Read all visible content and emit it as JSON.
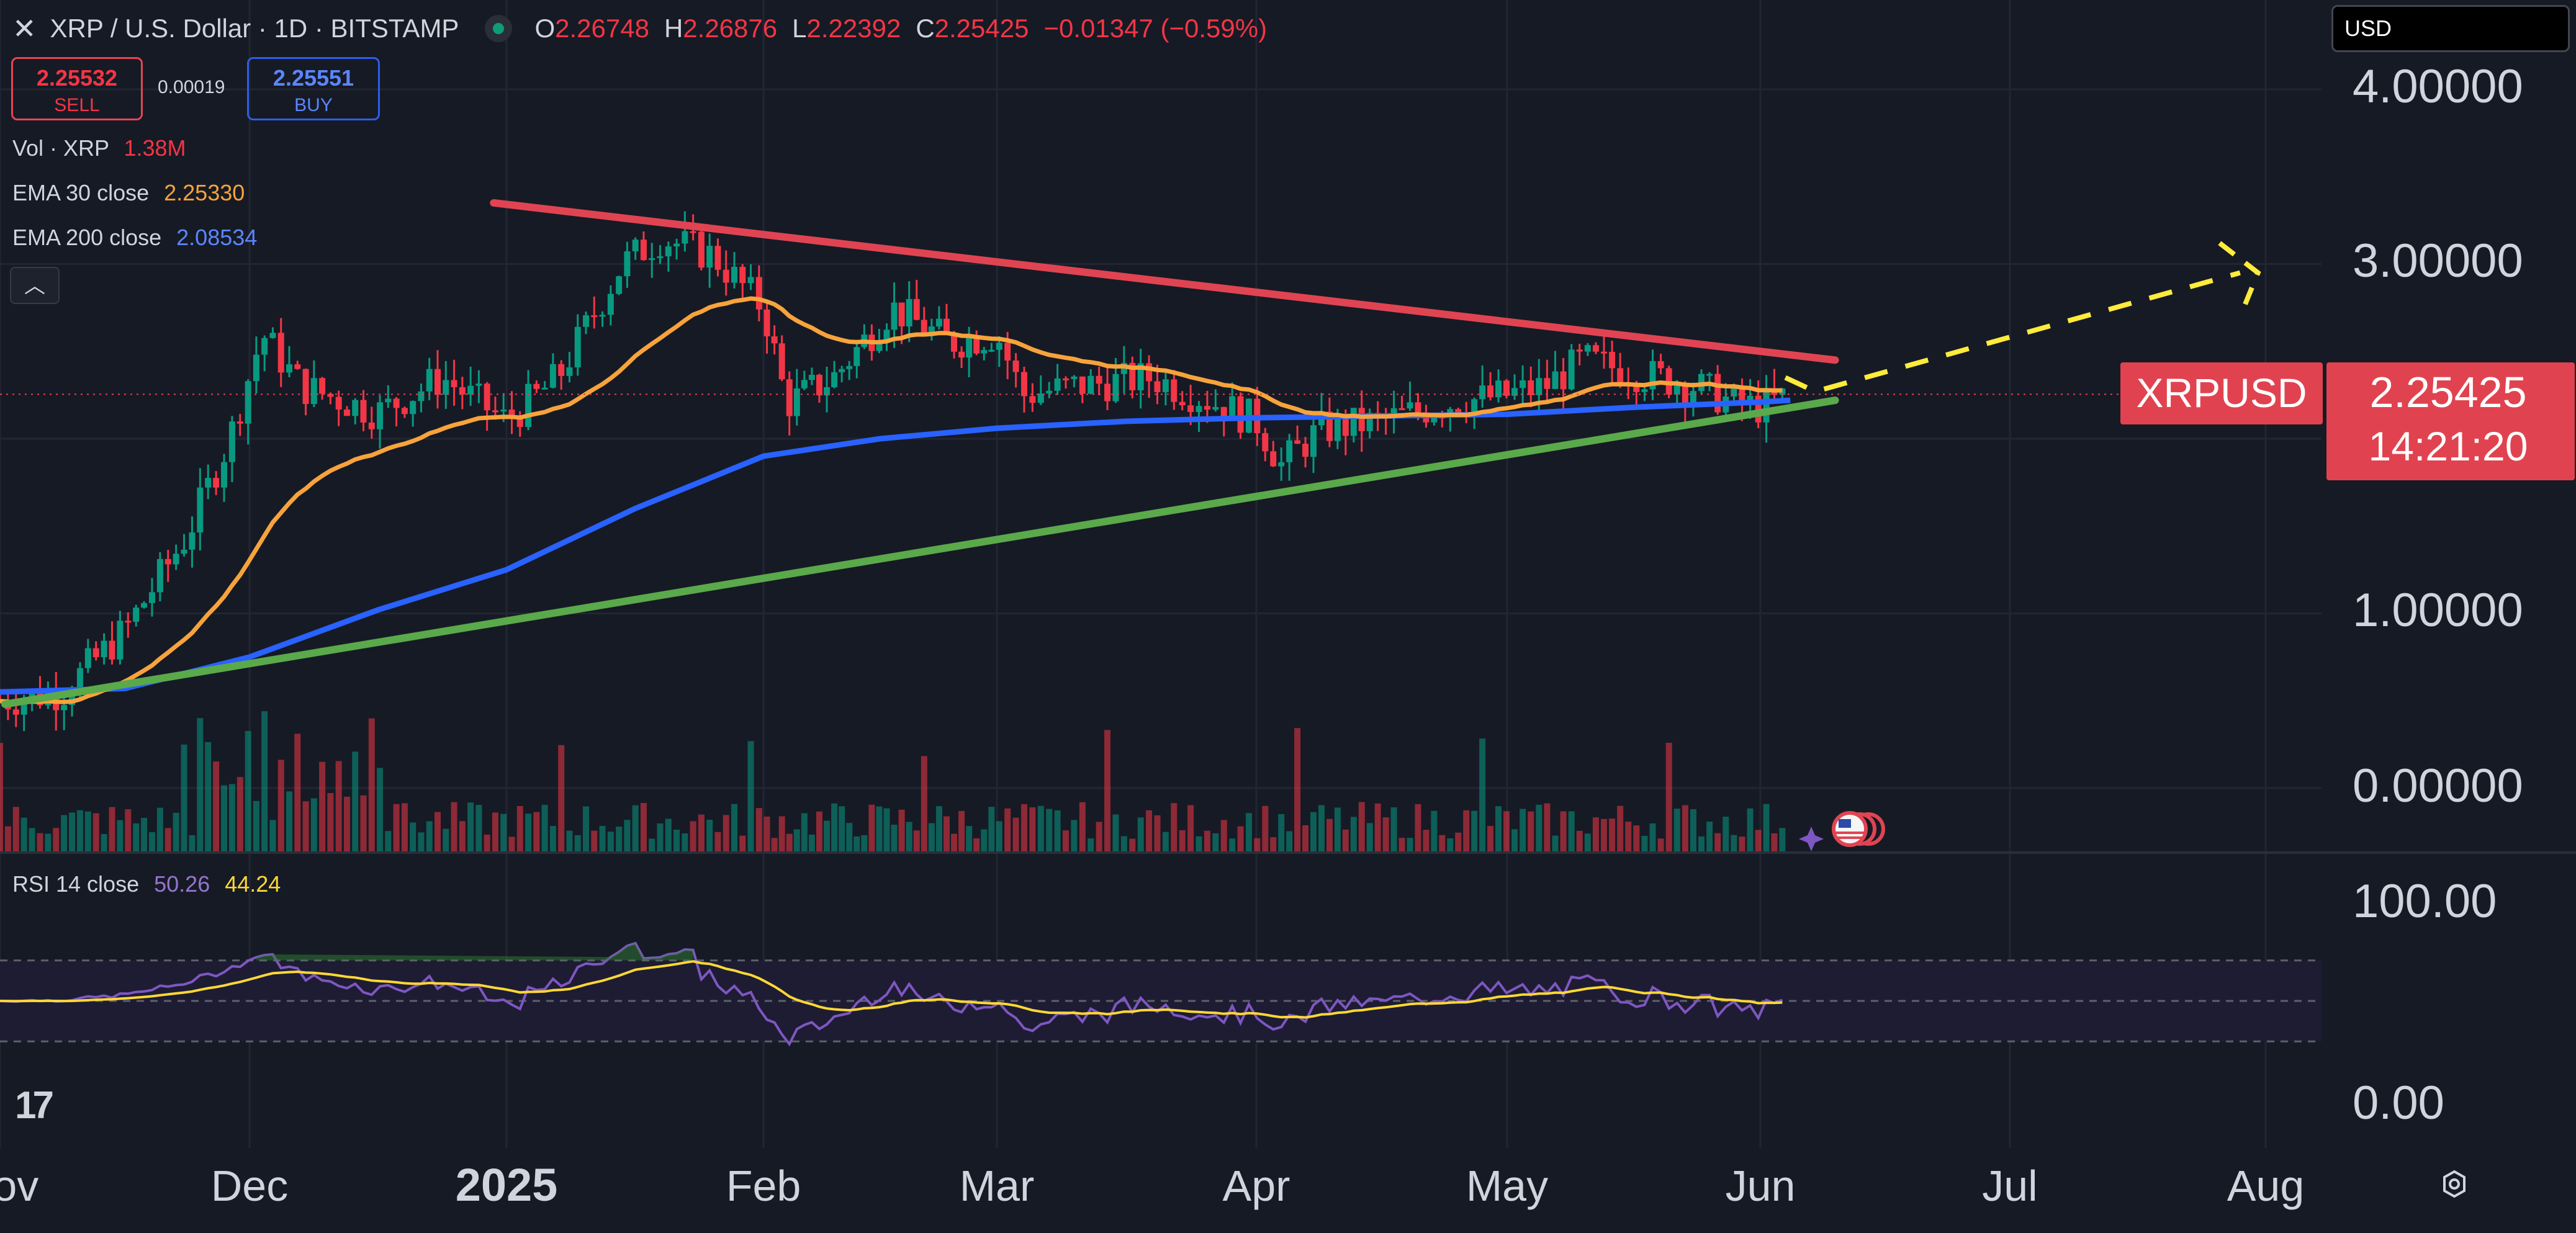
{
  "header": {
    "symbol_title": "XRP / U.S. Dollar · 1D · BITSTAMP",
    "ohlc": {
      "o_label": "O",
      "o_value": "2.26748",
      "h_label": "H",
      "h_value": "2.26876",
      "l_label": "L",
      "l_value": "2.22392",
      "c_label": "C",
      "c_value": "2.25425",
      "change": "−0.01347 (−0.59%)"
    },
    "currency_select": "USD"
  },
  "trade": {
    "sell_price": "2.25532",
    "sell_label": "SELL",
    "spread": "0.00019",
    "buy_price": "2.25551",
    "buy_label": "BUY"
  },
  "indicators": {
    "vol_label": "Vol · XRP",
    "vol_value": "1.38M",
    "ema30_label": "EMA 30 close",
    "ema30_value": "2.25330",
    "ema200_label": "EMA 200 close",
    "ema200_value": "2.08534",
    "rsi_label": "RSI 14 close",
    "rsi_value": "50.26",
    "rsi_ma_value": "44.24"
  },
  "price_badge": {
    "symbol": "XRPUSD",
    "price": "2.25425",
    "countdown": "14:21:20"
  },
  "icons": {
    "close": "close-icon",
    "collapse": "chevron-up-icon",
    "logo": "tradingview-logo",
    "settings": "settings-icon",
    "events": "us-flag-icon"
  },
  "colors": {
    "bg": "#161a25",
    "up": "#089981",
    "down": "#f23645",
    "ema30": "#f7a33b",
    "ema200": "#2962ff",
    "resistance": "#e04452",
    "support": "#5aa94a",
    "projection": "#ffeb3b",
    "rsi": "#7e57c2",
    "rsi_ma": "#fdd835",
    "badge": "#e0434f"
  },
  "chart_data": {
    "type": "candlestick",
    "symbol": "XRP / U.S. Dollar",
    "timeframe": "1D",
    "exchange": "BITSTAMP",
    "x_axis_labels": [
      "Nov",
      "Dec",
      "2025",
      "Feb",
      "Mar",
      "Apr",
      "May",
      "Jun",
      "Jul",
      "Aug"
    ],
    "y_axis_labels": [
      "4.00000",
      "3.00000",
      "1.00000",
      "0.00000"
    ],
    "rsi_axis_labels": [
      "100.00",
      "0.00"
    ],
    "last_price": 2.25425,
    "monthly_closes_approx": [
      {
        "month": "Nov",
        "close": 0.6
      },
      {
        "month": "Dec",
        "close": 2.2
      },
      {
        "month": "2025",
        "close": 2.3
      },
      {
        "month": "Feb",
        "close": 2.6
      },
      {
        "month": "Mar",
        "close": 2.2
      },
      {
        "month": "Apr",
        "close": 2.1
      },
      {
        "month": "May",
        "close": 2.2
      },
      {
        "month": "Jun",
        "close": 2.25
      }
    ],
    "trendlines": [
      {
        "name": "resistance",
        "from": {
          "month": "2025",
          "value": 3.35
        },
        "to": {
          "month": "Jun",
          "value": 2.45
        }
      },
      {
        "name": "support",
        "from": {
          "month": "Nov",
          "value": 0.48
        },
        "to": {
          "month": "Jun",
          "value": 2.22
        }
      },
      {
        "name": "projection",
        "from": {
          "month": "Jun",
          "value": 2.27
        },
        "to": {
          "month": "Aug",
          "value": 2.95
        }
      }
    ],
    "rsi_levels": [
      70,
      50,
      30
    ],
    "grid": true
  }
}
